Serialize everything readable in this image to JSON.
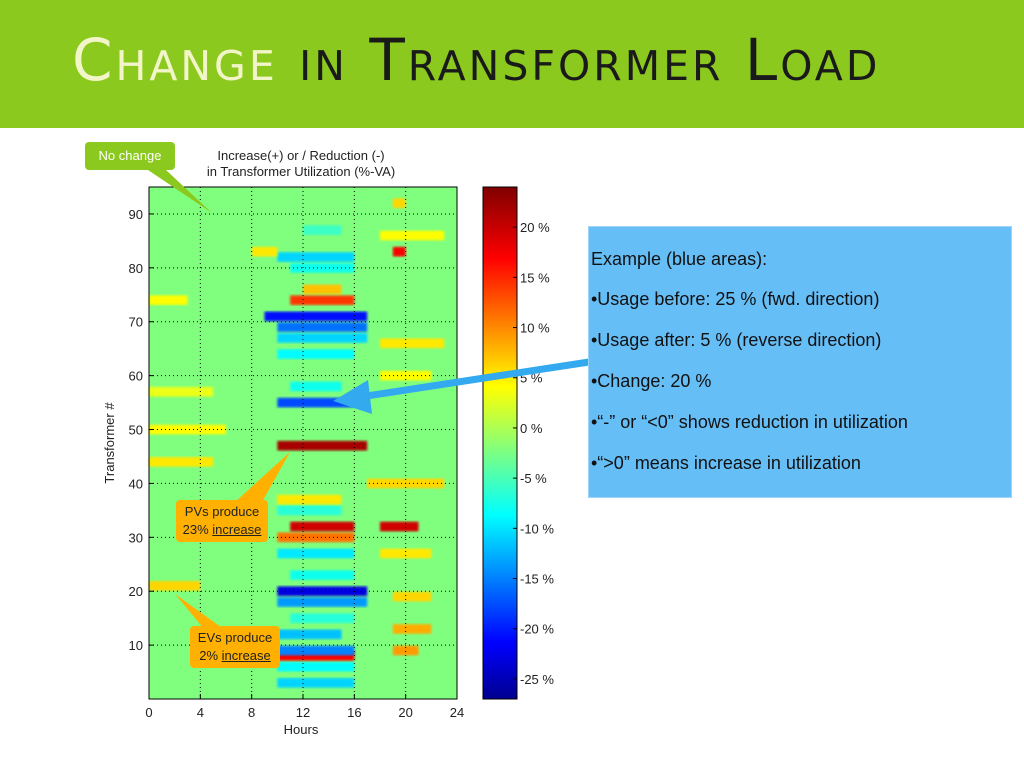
{
  "slide": {
    "title_word1": "Change",
    "title_word2": "in Transformer Load",
    "header_color": "#8cc91e"
  },
  "chart_data": {
    "type": "heatmap",
    "title_lines": [
      "Increase(+) or / Reduction (-)",
      "in Transformer Utilization (%-VA)"
    ],
    "xlabel": "Hours",
    "ylabel": "Transformer #",
    "x_ticks": [
      0,
      4,
      8,
      12,
      16,
      20,
      24
    ],
    "y_ticks": [
      10,
      20,
      30,
      40,
      50,
      60,
      70,
      80,
      90
    ],
    "xlim": [
      0,
      24
    ],
    "ylim": [
      0,
      95
    ],
    "grid": true,
    "colorbar": {
      "range": [
        -27,
        24
      ],
      "tick_values": [
        20,
        15,
        10,
        5,
        0,
        -5,
        -10,
        -15,
        -20,
        -25
      ],
      "tick_labels": [
        "20 %",
        "15 %",
        "10 %",
        "5 %",
        "0 %",
        "-5 %",
        "-10 %",
        "-15 %",
        "-20 %",
        "-25 %"
      ],
      "colormap": "jet"
    },
    "bands": [
      {
        "transformer": 3,
        "h0": 10,
        "h1": 16,
        "value": -10
      },
      {
        "transformer": 6,
        "h0": 10,
        "h1": 16,
        "value": -8
      },
      {
        "transformer": 8,
        "h0": 10,
        "h1": 16,
        "value": 18
      },
      {
        "transformer": 9,
        "h0": 10,
        "h1": 16,
        "value": -14
      },
      {
        "transformer": 12,
        "h0": 10,
        "h1": 15,
        "value": -11
      },
      {
        "transformer": 15,
        "h0": 11,
        "h1": 16,
        "value": -6
      },
      {
        "transformer": 18,
        "h0": 10,
        "h1": 17,
        "value": -13
      },
      {
        "transformer": 20,
        "h0": 10,
        "h1": 17,
        "value": -22
      },
      {
        "transformer": 23,
        "h0": 11,
        "h1": 16,
        "value": -7
      },
      {
        "transformer": 27,
        "h0": 10,
        "h1": 16,
        "value": -9
      },
      {
        "transformer": 30,
        "h0": 10,
        "h1": 16,
        "value": 12
      },
      {
        "transformer": 32,
        "h0": 11,
        "h1": 16,
        "value": 20
      },
      {
        "transformer": 32,
        "h0": 18,
        "h1": 21,
        "value": 20
      },
      {
        "transformer": 35,
        "h0": 10,
        "h1": 15,
        "value": -6
      },
      {
        "transformer": 37,
        "h0": 10,
        "h1": 15,
        "value": 6
      },
      {
        "transformer": 47,
        "h0": 10,
        "h1": 17,
        "value": 22
      },
      {
        "transformer": 55,
        "h0": 10,
        "h1": 16,
        "value": -17
      },
      {
        "transformer": 58,
        "h0": 11,
        "h1": 15,
        "value": -7
      },
      {
        "transformer": 64,
        "h0": 10,
        "h1": 16,
        "value": -8
      },
      {
        "transformer": 67,
        "h0": 10,
        "h1": 17,
        "value": -10
      },
      {
        "transformer": 69,
        "h0": 10,
        "h1": 17,
        "value": -15
      },
      {
        "transformer": 71,
        "h0": 9,
        "h1": 17,
        "value": -20
      },
      {
        "transformer": 74,
        "h0": 11,
        "h1": 16,
        "value": 15
      },
      {
        "transformer": 76,
        "h0": 12,
        "h1": 15,
        "value": 8
      },
      {
        "transformer": 80,
        "h0": 11,
        "h1": 16,
        "value": -7
      },
      {
        "transformer": 82,
        "h0": 10,
        "h1": 16,
        "value": -10
      },
      {
        "transformer": 83,
        "h0": 19,
        "h1": 20,
        "value": 18
      },
      {
        "transformer": 87,
        "h0": 12,
        "h1": 15,
        "value": -5
      },
      {
        "transformer": 13,
        "h0": 19,
        "h1": 22,
        "value": 9
      },
      {
        "transformer": 19,
        "h0": 19,
        "h1": 22,
        "value": 7
      },
      {
        "transformer": 9,
        "h0": 19,
        "h1": 21,
        "value": 10
      },
      {
        "transformer": 92,
        "h0": 19,
        "h1": 20,
        "value": 7
      },
      {
        "transformer": 21,
        "h0": 0,
        "h1": 4,
        "value": 7
      },
      {
        "transformer": 44,
        "h0": 0,
        "h1": 5,
        "value": 6
      },
      {
        "transformer": 50,
        "h0": 0,
        "h1": 6,
        "value": 5
      },
      {
        "transformer": 57,
        "h0": 0,
        "h1": 5,
        "value": 4
      },
      {
        "transformer": 74,
        "h0": 0,
        "h1": 3,
        "value": 5
      },
      {
        "transformer": 83,
        "h0": 8,
        "h1": 10,
        "value": 6
      },
      {
        "transformer": 66,
        "h0": 18,
        "h1": 23,
        "value": 6
      },
      {
        "transformer": 60,
        "h0": 18,
        "h1": 22,
        "value": 5
      },
      {
        "transformer": 40,
        "h0": 17,
        "h1": 23,
        "value": 7
      },
      {
        "transformer": 27,
        "h0": 18,
        "h1": 22,
        "value": 6
      },
      {
        "transformer": 86,
        "h0": 18,
        "h1": 23,
        "value": 5
      }
    ]
  },
  "callouts": {
    "no_change": "No change",
    "pvs_line1": "PVs produce",
    "pvs_line2_prefix": "23% ",
    "pvs_line2_underlined": "increase",
    "evs_line1": "EVs produce",
    "evs_line2_prefix": "2% ",
    "evs_line2_underlined": "increase"
  },
  "info_box": {
    "title": "Example (blue areas):",
    "bullets": [
      "•Usage before: 25 % (fwd. direction)",
      "•Usage after: 5 % (reverse direction)",
      "•Change: 20 %",
      "•“-” or “<0” shows reduction in utilization",
      "•“>0” means increase in utilization"
    ]
  },
  "colors": {
    "callout_green": "#8cc91e",
    "callout_orange": "#ffb000",
    "arrow_blue": "#33aaf0",
    "box_blue": "#66bef7"
  }
}
